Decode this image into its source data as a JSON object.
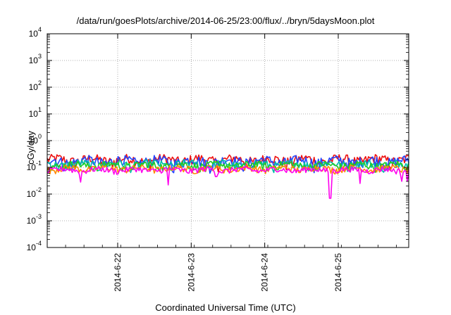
{
  "chart_data": {
    "type": "line",
    "title": "/data/run/goesPlots/archive/2014-06-25/23:00/flux/../bryn/5daysMoon.plot",
    "xlabel": "Coordinated Universal Time (UTC)",
    "ylabel": "cGy/day",
    "yscale": "log",
    "ylim": [
      0.0001,
      10000
    ],
    "y_ticks": [
      {
        "base": "10",
        "exp": "-4"
      },
      {
        "base": "10",
        "exp": "-3"
      },
      {
        "base": "10",
        "exp": "-2"
      },
      {
        "base": "10",
        "exp": "-1"
      },
      {
        "base": "10",
        "exp": "0"
      },
      {
        "base": "10",
        "exp": "1"
      },
      {
        "base": "10",
        "exp": "2"
      },
      {
        "base": "10",
        "exp": "3"
      },
      {
        "base": "10",
        "exp": "4"
      }
    ],
    "xlim": [
      "2014-06-21 01:00",
      "2014-06-25 23:00"
    ],
    "x_ticks": [
      "2014-6-22",
      "2014-6-23",
      "2014-6-24",
      "2014-6-25"
    ],
    "grid": true,
    "series": [
      {
        "color": "#ee1111",
        "level": 0.19,
        "amp": 0.09,
        "dips": []
      },
      {
        "color": "#2244ff",
        "level": 0.17,
        "amp": 0.08,
        "dips": []
      },
      {
        "color": "#00bbaa",
        "level": 0.13,
        "amp": 0.05,
        "dips": []
      },
      {
        "color": "#22cc22",
        "level": 0.12,
        "amp": 0.04,
        "dips": []
      },
      {
        "color": "#ff8800",
        "level": 0.09,
        "amp": 0.025,
        "dips": []
      },
      {
        "color": "#ff00ee",
        "level": 0.08,
        "amp": 0.02,
        "dips": [
          {
            "day": 0.45,
            "value": 0.028
          },
          {
            "day": 1.65,
            "value": 0.022
          },
          {
            "day": 2.3,
            "value": 0.045
          },
          {
            "day": 3.85,
            "value": 0.007
          },
          {
            "day": 4.25,
            "value": 0.025
          },
          {
            "day": 4.82,
            "value": 0.03
          },
          {
            "day": 4.9,
            "value": 0.03
          }
        ]
      }
    ]
  }
}
